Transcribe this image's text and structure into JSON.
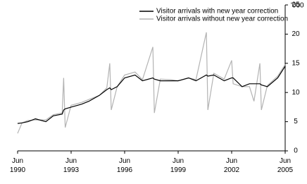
{
  "chart_data": {
    "type": "line",
    "y_unit": "'000",
    "axis_side": "right",
    "x": [
      "1990-06",
      "1990-09",
      "1991-01",
      "1991-06",
      "1992-01",
      "1992-06",
      "1992-12",
      "1993-01",
      "1993-02",
      "1993-06",
      "1994-01",
      "1994-06",
      "1995-01",
      "1995-06",
      "1995-08",
      "1995-09",
      "1996-01",
      "1996-06",
      "1997-01",
      "1997-06",
      "1998-01",
      "1998-02",
      "1998-06",
      "1999-01",
      "1999-06",
      "2000-01",
      "2000-06",
      "2001-01",
      "2001-02",
      "2001-06",
      "2002-01",
      "2002-06",
      "2002-07",
      "2003-01",
      "2003-06",
      "2003-09",
      "2004-01",
      "2004-02",
      "2004-06",
      "2005-01",
      "2005-06"
    ],
    "series": [
      {
        "name": "Visitor arrivals with new year correction",
        "color": "#000000",
        "values": [
          4.7,
          4.8,
          5.0,
          5.5,
          5.0,
          6.0,
          6.3,
          7.0,
          7.2,
          7.5,
          8.0,
          8.5,
          9.5,
          10.5,
          10.8,
          10.5,
          11.0,
          12.5,
          13.0,
          12.0,
          12.5,
          12.3,
          12.0,
          12.0,
          12.0,
          12.5,
          12.0,
          13.0,
          12.8,
          13.0,
          12.0,
          12.5,
          12.5,
          11.0,
          11.5,
          11.5,
          11.5,
          11.3,
          11.0,
          12.5,
          14.5
        ]
      },
      {
        "name": "Visitor arrivals without new year correction",
        "color": "#b3b3b3",
        "values": [
          3.0,
          4.8,
          5.2,
          5.3,
          5.3,
          6.2,
          6.5,
          12.5,
          4.0,
          7.8,
          8.3,
          8.8,
          9.5,
          10.8,
          15.0,
          7.0,
          11.0,
          13.0,
          13.5,
          12.2,
          17.8,
          6.5,
          12.3,
          12.2,
          12.0,
          12.5,
          12.2,
          20.3,
          7.0,
          13.3,
          12.3,
          15.5,
          11.5,
          11.0,
          11.0,
          8.5,
          15.0,
          7.0,
          11.2,
          12.8,
          14.8
        ]
      }
    ],
    "xticks": [
      {
        "value": "1990-06",
        "label": "Jun\n1990"
      },
      {
        "value": "1993-06",
        "label": "Jun\n1993"
      },
      {
        "value": "1996-06",
        "label": "Jun\n1996"
      },
      {
        "value": "1999-06",
        "label": "Jun\n1999"
      },
      {
        "value": "2002-06",
        "label": "Jun\n2002"
      },
      {
        "value": "2005-06",
        "label": "Jun\n2005"
      }
    ],
    "xlim": [
      "1990-06",
      "2005-06"
    ],
    "ylim": [
      0,
      25
    ],
    "yticks": [
      0,
      5,
      10,
      15,
      20,
      25
    ]
  }
}
